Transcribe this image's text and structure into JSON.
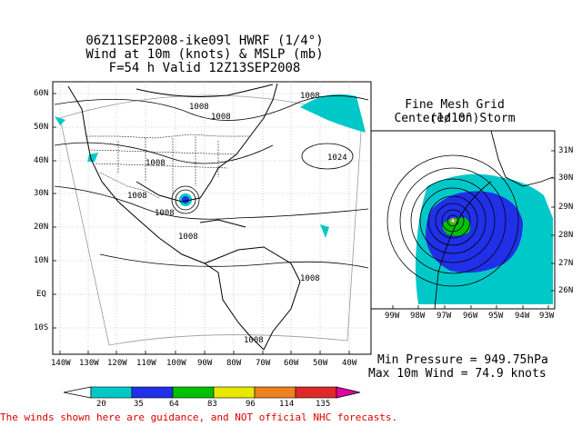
{
  "header": {
    "line1": "06Z11SEP2008-ike09l HWRF (1/4°)",
    "line2": "Wind at 10m (knots) & MSLP (mb)",
    "line3": "F=54 h Valid 12Z13SEP2008"
  },
  "left_map": {
    "lat_labels": [
      "60N",
      "50N",
      "40N",
      "30N",
      "20N",
      "10N",
      "EQ",
      "10S"
    ],
    "lon_labels": [
      "140W",
      "130W",
      "120W",
      "110W",
      "100W",
      "90W",
      "80W",
      "70W",
      "60W",
      "50W",
      "40W"
    ],
    "isobar_labels": [
      "1008",
      "1008",
      "1008",
      "1008",
      "1024",
      "1008",
      "1008",
      "1008",
      "1008",
      "1008"
    ]
  },
  "right_map": {
    "title_line1": "Fine Mesh Grid (1/10°)",
    "title_line2": "Centered on Storm",
    "lat_labels": [
      "31N",
      "30N",
      "29N",
      "28N",
      "27N",
      "26N"
    ],
    "lon_labels": [
      "99W",
      "98W",
      "97W",
      "96W",
      "95W",
      "94W",
      "93W"
    ]
  },
  "stats": {
    "min_pressure": "Min Pressure = 949.75hPa",
    "max_wind": "Max 10m Wind = 74.9 knots"
  },
  "colorbar": {
    "labels": [
      "20",
      "35",
      "64",
      "83",
      "96",
      "114",
      "135"
    ],
    "colors": [
      "#00c8c8",
      "#2030e8",
      "#00c000",
      "#e8e800",
      "#f08020",
      "#e02828",
      "#e000a0"
    ]
  },
  "disclaimer": "The winds shown here are guidance, and NOT official NHC forecasts."
}
